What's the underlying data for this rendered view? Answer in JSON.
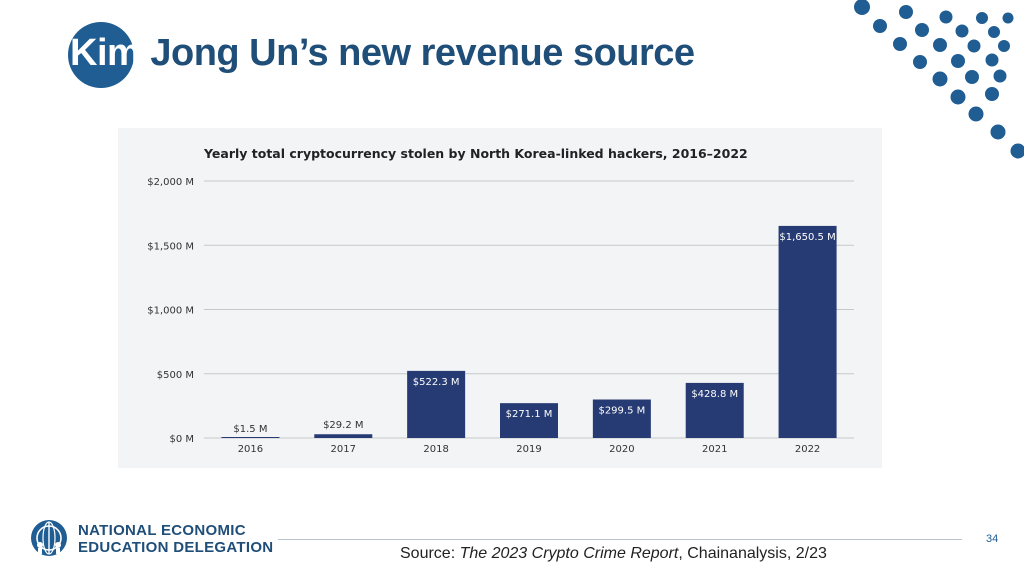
{
  "slide": {
    "title_first_word": "Kim",
    "title_rest": " Jong Un’s new revenue source",
    "page_number": "34",
    "accent_color": "#1f5d93",
    "title_color": "#1f4e79"
  },
  "logo": {
    "line1": "NATIONAL ECONOMIC",
    "line2": "EDUCATION DELEGATION"
  },
  "source": {
    "prefix": "Source:  ",
    "work": "The 2023 Crypto Crime Report",
    "suffix": ", Chainanalysis, 2/23"
  },
  "chart_data": {
    "type": "bar",
    "title": "Yearly total cryptocurrency stolen by North Korea-linked hackers, 2016–2022",
    "categories": [
      "2016",
      "2017",
      "2018",
      "2019",
      "2020",
      "2021",
      "2022"
    ],
    "values": [
      1.5,
      29.2,
      522.3,
      271.1,
      299.5,
      428.8,
      1650.5
    ],
    "value_labels": [
      "$1.5 M",
      "$29.2 M",
      "$522.3 M",
      "$271.1 M",
      "$299.5 M",
      "$428.8 M",
      "$1,650.5 M"
    ],
    "yticks": [
      0,
      500,
      1000,
      1500,
      2000
    ],
    "ytick_labels": [
      "$0 M",
      "$500 M",
      "$1,000 M",
      "$1,500 M",
      "$2,000 M"
    ],
    "ylim": [
      0,
      2000
    ],
    "grid": true,
    "bar_color": "#263a73",
    "label_inside_threshold": 250
  }
}
